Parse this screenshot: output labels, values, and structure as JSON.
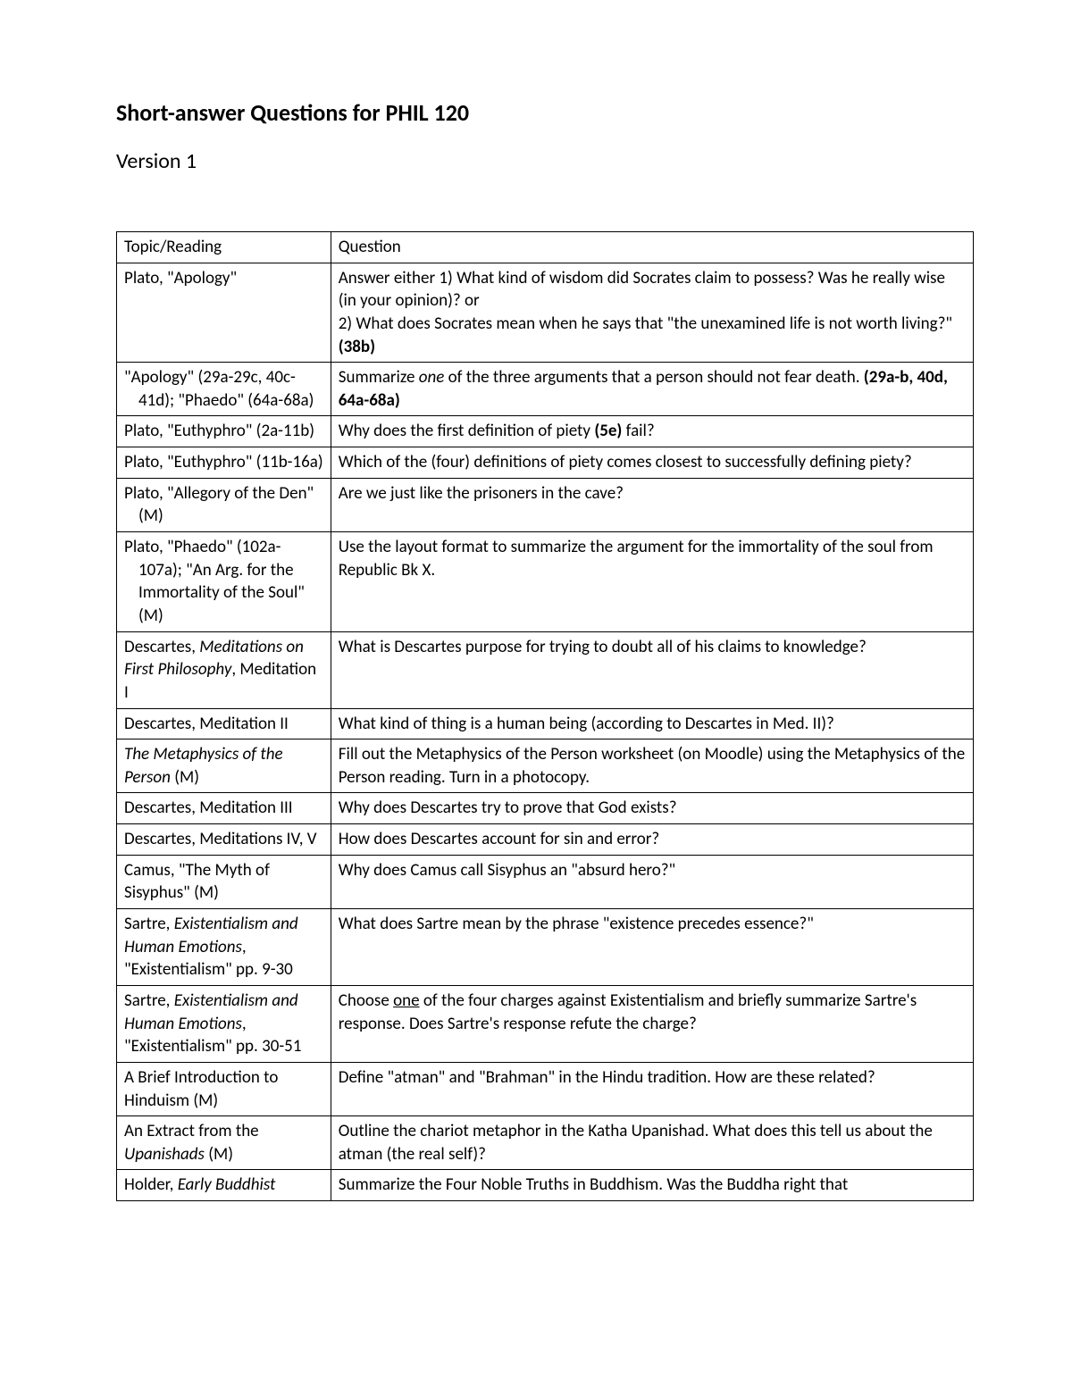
{
  "title": "Short-answer Questions for PHIL 120",
  "version": "Version 1",
  "columns": [
    "Topic/Reading",
    "Question"
  ],
  "table": {
    "border_color": "#000000",
    "background_color": "#ffffff",
    "font_family": "Calibri",
    "font_size_pt": 14,
    "topic_col_width_pct": 25,
    "question_col_width_pct": 75
  },
  "rows": [
    {
      "topic": [
        {
          "t": "Plato, \"Apology\""
        }
      ],
      "question": [
        {
          "t": "Answer either 1) What kind of wisdom did Socrates claim to possess?  Was he really wise (in your opinion)?  or"
        },
        {
          "t": "2) What does Socrates mean when he says that \"the unexamined life is not worth living?\" "
        },
        {
          "t": "(38b)",
          "bold": true
        }
      ],
      "q_two_lines": true
    },
    {
      "topic": [
        {
          "t": "\"Apology\" (29a-29c, 40c-41d); \"Phaedo\" (64a-68a)"
        }
      ],
      "topic_hang": true,
      "question": [
        {
          "t": "Summarize "
        },
        {
          "t": "one",
          "italic": true
        },
        {
          "t": " of the three arguments that a person  should not fear death.  "
        },
        {
          "t": "(29a-b, 40d, 64a-68a)",
          "bold": true
        }
      ]
    },
    {
      "topic": [
        {
          "t": "Plato, \"Euthyphro\" (2a-11b)"
        }
      ],
      "topic_hang": true,
      "question": [
        {
          "t": "Why does the first definition of piety "
        },
        {
          "t": "(5e)",
          "bold": true
        },
        {
          "t": " fail?"
        }
      ]
    },
    {
      "topic": [
        {
          "t": "Plato, \"Euthyphro\" (11b-16a)"
        }
      ],
      "topic_hang": true,
      "question": [
        {
          "t": "Which of the (four) definitions of piety comes closest to successfully defining piety?"
        }
      ]
    },
    {
      "topic": [
        {
          "t": "Plato, \"Allegory of the Den\" (M)"
        }
      ],
      "topic_hang": true,
      "question": [
        {
          "t": "Are we just like the prisoners in the cave?"
        }
      ]
    },
    {
      "topic": [
        {
          "t": "Plato, \"Phaedo\" (102a-107a); \"An Arg. for the Immortality of the Soul\" (M)"
        }
      ],
      "topic_hang": true,
      "question": [
        {
          "t": "Use the layout format to summarize the argument for the immortality of the soul from Republic Bk X."
        }
      ]
    },
    {
      "topic": [
        {
          "t": "Descartes, "
        },
        {
          "t": "Meditations on First Philosophy",
          "italic": true
        },
        {
          "t": ", Meditation I"
        }
      ],
      "question": [
        {
          "t": "What is Descartes purpose for trying to doubt all of his claims to knowledge?"
        }
      ]
    },
    {
      "topic": [
        {
          "t": "Descartes, Meditation II"
        }
      ],
      "question": [
        {
          "t": "What kind of thing is a human being (according to Descartes in Med. II)?"
        }
      ]
    },
    {
      "topic": [
        {
          "t": "The Metaphysics of the Person",
          "italic": true
        },
        {
          "t": " (M)"
        }
      ],
      "question": [
        {
          "t": "Fill out the Metaphysics of the Person worksheet (on Moodle) using the Metaphysics of the Person reading.  Turn in a photocopy."
        }
      ]
    },
    {
      "topic": [
        {
          "t": "Descartes, Meditation III"
        }
      ],
      "question": [
        {
          "t": "Why does Descartes try to prove that God exists?"
        }
      ]
    },
    {
      "topic": [
        {
          "t": "Descartes, Meditations IV, V"
        }
      ],
      "question": [
        {
          "t": "How does Descartes account for sin and error?"
        }
      ]
    },
    {
      "topic": [
        {
          "t": "Camus, \"The Myth of Sisyphus\" (M)"
        }
      ],
      "question": [
        {
          "t": "Why does Camus call Sisyphus an \"absurd hero?\""
        }
      ]
    },
    {
      "topic": [
        {
          "t": "Sartre, "
        },
        {
          "t": "Existentialism and Human Emotions",
          "italic": true
        },
        {
          "t": ", \"Existentialism\" pp. 9-30"
        }
      ],
      "question": [
        {
          "t": "What does Sartre mean by the phrase \"existence precedes essence?\""
        }
      ]
    },
    {
      "topic": [
        {
          "t": "Sartre, "
        },
        {
          "t": "Existentialism and Human Emotions",
          "italic": true
        },
        {
          "t": ", \"Existentialism\" pp. 30-51"
        }
      ],
      "question": [
        {
          "t": "Choose "
        },
        {
          "t": "one",
          "underline": true
        },
        {
          "t": " of the four charges against Existentialism and briefly summarize Sartre's response.  Does Sartre's response refute the charge?"
        }
      ]
    },
    {
      "topic": [
        {
          "t": "A Brief Introduction to Hinduism (M)"
        }
      ],
      "question": [
        {
          "t": "Define \"atman\" and \"Brahman\" in the Hindu tradition.  How are these related?"
        }
      ]
    },
    {
      "topic": [
        {
          "t": "An Extract from the "
        },
        {
          "t": "Upanishads",
          "italic": true
        },
        {
          "t": " (M)"
        }
      ],
      "question": [
        {
          "t": "Outline the chariot metaphor in the Katha Upanishad.  What does this tell us about the atman (the real self)?"
        }
      ]
    },
    {
      "topic": [
        {
          "t": "Holder, "
        },
        {
          "t": "Early Buddhist",
          "italic": true
        }
      ],
      "question": [
        {
          "t": "Summarize the Four Noble Truths in Buddhism.  Was the Buddha right that"
        }
      ]
    }
  ]
}
